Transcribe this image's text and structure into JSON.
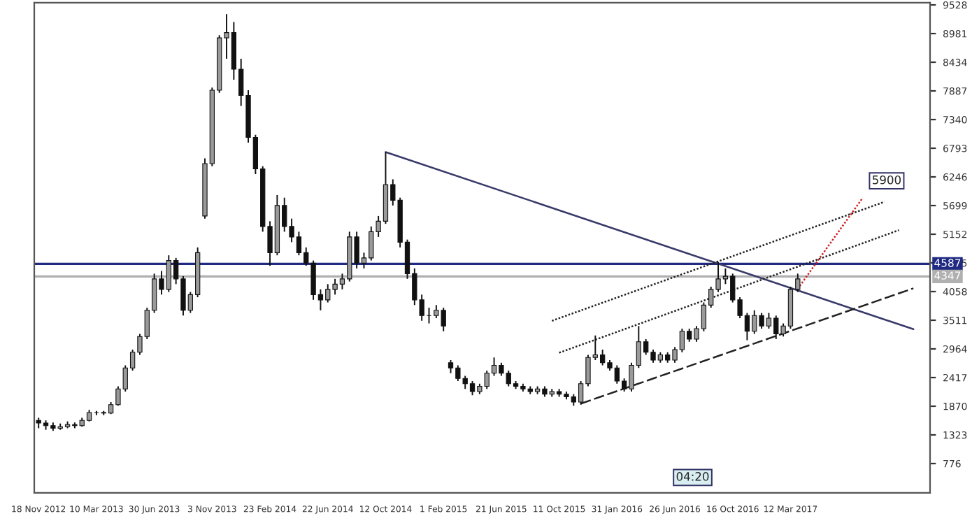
{
  "chart_data": {
    "type": "candlestick",
    "categories": [
      "18 Nov 2012",
      null,
      null,
      null,
      null,
      null,
      null,
      null,
      "10 Mar 2013",
      null,
      null,
      null,
      null,
      null,
      null,
      null,
      "30 Jun 2013",
      null,
      null,
      null,
      null,
      null,
      null,
      null,
      "3 Nov 2013",
      null,
      null,
      null,
      null,
      null,
      null,
      null,
      "23 Feb 2014",
      null,
      null,
      null,
      null,
      null,
      null,
      null,
      "22 Jun 2014",
      null,
      null,
      null,
      null,
      null,
      null,
      null,
      "12 Oct 2014",
      null,
      null,
      null,
      null,
      null,
      null,
      null,
      "1 Feb 2015",
      null,
      null,
      null,
      null,
      null,
      null,
      null,
      "21 Jun 2015",
      null,
      null,
      null,
      null,
      null,
      null,
      null,
      "11 Oct 2015",
      null,
      null,
      null,
      null,
      null,
      null,
      null,
      "31 Jan 2016",
      null,
      null,
      null,
      null,
      null,
      null,
      null,
      "26 Jun 2016",
      null,
      null,
      null,
      null,
      null,
      null,
      null,
      "16 Oct 2016",
      null,
      null,
      null,
      null,
      null,
      null,
      null,
      "12 Mar 2017",
      null,
      null,
      null,
      null,
      null,
      null,
      null,
      null,
      null,
      null,
      null,
      null,
      null,
      null,
      null,
      null,
      null,
      null,
      null
    ],
    "ohlc": [
      [
        1600,
        1650,
        1450,
        1550
      ],
      [
        1550,
        1600,
        1420,
        1500
      ],
      [
        1500,
        1560,
        1400,
        1450
      ],
      [
        1450,
        1540,
        1420,
        1480
      ],
      [
        1480,
        1580,
        1450,
        1520
      ],
      [
        1520,
        1560,
        1450,
        1500
      ],
      [
        1500,
        1650,
        1480,
        1600
      ],
      [
        1600,
        1800,
        1580,
        1750
      ],
      [
        1750,
        1780,
        1700,
        1750
      ],
      [
        1750,
        1780,
        1700,
        1740
      ],
      [
        1740,
        1950,
        1720,
        1900
      ],
      [
        1900,
        2250,
        1880,
        2200
      ],
      [
        2200,
        2650,
        2150,
        2600
      ],
      [
        2600,
        2950,
        2550,
        2900
      ],
      [
        2900,
        3250,
        2850,
        3200
      ],
      [
        3200,
        3750,
        3150,
        3700
      ],
      [
        3700,
        4400,
        3650,
        4300
      ],
      [
        4300,
        4450,
        4000,
        4100
      ],
      [
        4100,
        4750,
        4050,
        4650
      ],
      [
        4650,
        4700,
        4200,
        4300
      ],
      [
        4300,
        4350,
        3600,
        3700
      ],
      [
        3700,
        4050,
        3650,
        4000
      ],
      [
        4000,
        4900,
        3950,
        4800
      ],
      [
        5500,
        6600,
        5450,
        6500
      ],
      [
        6500,
        7950,
        6450,
        7900
      ],
      [
        7900,
        8950,
        7850,
        8900
      ],
      [
        8900,
        9350,
        8500,
        9000
      ],
      [
        9000,
        9200,
        8100,
        8300
      ],
      [
        8300,
        8500,
        7600,
        7800
      ],
      [
        7800,
        7900,
        6900,
        7000
      ],
      [
        7000,
        7050,
        6300,
        6400
      ],
      [
        6400,
        6450,
        5200,
        5300
      ],
      [
        5300,
        5400,
        4550,
        4800
      ],
      [
        4800,
        5900,
        4750,
        5700
      ],
      [
        5700,
        5850,
        5200,
        5300
      ],
      [
        5300,
        5450,
        5000,
        5100
      ],
      [
        5100,
        5200,
        4750,
        4800
      ],
      [
        4800,
        4900,
        4550,
        4600
      ],
      [
        4600,
        4650,
        3900,
        4000
      ],
      [
        4000,
        4100,
        3700,
        3900
      ],
      [
        3900,
        4200,
        3850,
        4100
      ],
      [
        4100,
        4300,
        4000,
        4200
      ],
      [
        4200,
        4400,
        4100,
        4300
      ],
      [
        4300,
        5200,
        4250,
        5100
      ],
      [
        5100,
        5200,
        4500,
        4600
      ],
      [
        4600,
        4800,
        4500,
        4700
      ],
      [
        4700,
        5300,
        4650,
        5200
      ],
      [
        5200,
        5500,
        5100,
        5400
      ],
      [
        5400,
        6720,
        5350,
        6100
      ],
      [
        6100,
        6200,
        5700,
        5800
      ],
      [
        5800,
        5850,
        4900,
        5000
      ],
      [
        5000,
        5050,
        4300,
        4400
      ],
      [
        4400,
        4500,
        3800,
        3900
      ],
      [
        3900,
        4000,
        3500,
        3600
      ],
      [
        3600,
        3750,
        3450,
        3600
      ],
      [
        3600,
        3800,
        3550,
        3700
      ],
      [
        3700,
        3750,
        3300,
        3400
      ],
      [
        2700,
        2750,
        2500,
        2600
      ],
      [
        2600,
        2650,
        2350,
        2400
      ],
      [
        2400,
        2450,
        2200,
        2300
      ],
      [
        2300,
        2350,
        2080,
        2150
      ],
      [
        2150,
        2300,
        2100,
        2250
      ],
      [
        2250,
        2550,
        2200,
        2500
      ],
      [
        2500,
        2800,
        2450,
        2650
      ],
      [
        2650,
        2700,
        2450,
        2500
      ],
      [
        2500,
        2550,
        2250,
        2300
      ],
      [
        2300,
        2350,
        2200,
        2250
      ],
      [
        2250,
        2300,
        2150,
        2200
      ],
      [
        2200,
        2250,
        2100,
        2150
      ],
      [
        2150,
        2250,
        2100,
        2200
      ],
      [
        2200,
        2250,
        2050,
        2100
      ],
      [
        2100,
        2200,
        2050,
        2150
      ],
      [
        2150,
        2200,
        2050,
        2100
      ],
      [
        2100,
        2150,
        2000,
        2050
      ],
      [
        2050,
        2100,
        1880,
        1950
      ],
      [
        1950,
        2350,
        1900,
        2300
      ],
      [
        2300,
        2850,
        2250,
        2800
      ],
      [
        2800,
        3220,
        2750,
        2850
      ],
      [
        2850,
        2950,
        2650,
        2700
      ],
      [
        2700,
        2750,
        2550,
        2600
      ],
      [
        2600,
        2650,
        2300,
        2350
      ],
      [
        2350,
        2400,
        2150,
        2200
      ],
      [
        2200,
        2700,
        2150,
        2650
      ],
      [
        2650,
        3400,
        2600,
        3100
      ],
      [
        3100,
        3150,
        2850,
        2900
      ],
      [
        2900,
        2950,
        2700,
        2750
      ],
      [
        2750,
        2900,
        2700,
        2850
      ],
      [
        2850,
        2900,
        2700,
        2750
      ],
      [
        2750,
        3000,
        2700,
        2950
      ],
      [
        2950,
        3350,
        2900,
        3300
      ],
      [
        3300,
        3350,
        3100,
        3150
      ],
      [
        3150,
        3400,
        3100,
        3350
      ],
      [
        3350,
        3850,
        3300,
        3800
      ],
      [
        3800,
        4150,
        3750,
        4100
      ],
      [
        4100,
        4620,
        4050,
        4300
      ],
      [
        4300,
        4500,
        4200,
        4350
      ],
      [
        4350,
        4400,
        3850,
        3900
      ],
      [
        3900,
        3950,
        3550,
        3600
      ],
      [
        3600,
        3650,
        3130,
        3300
      ],
      [
        3300,
        3700,
        3250,
        3600
      ],
      [
        3600,
        3650,
        3350,
        3400
      ],
      [
        3400,
        3650,
        3350,
        3550
      ],
      [
        3550,
        3600,
        3150,
        3250
      ],
      [
        3250,
        3450,
        3200,
        3400
      ],
      [
        3400,
        4150,
        3350,
        4100
      ],
      [
        4100,
        4400,
        4050,
        4300
      ],
      null,
      null,
      null,
      null,
      null,
      null,
      null,
      null,
      null,
      null,
      null,
      null,
      null,
      null,
      null,
      null,
      null,
      null
    ],
    "series": [
      {
        "type": "line",
        "color": "#3a3a6a",
        "line_style": "solid",
        "values": [
          null,
          null,
          null,
          null,
          null,
          null,
          null,
          null,
          null,
          null,
          null,
          null,
          null,
          null,
          null,
          null,
          null,
          null,
          null,
          null,
          null,
          null,
          null,
          null,
          null,
          null,
          null,
          null,
          null,
          null,
          null,
          null,
          null,
          null,
          null,
          null,
          null,
          null,
          null,
          null,
          null,
          null,
          null,
          null,
          null,
          null,
          null,
          null,
          6720,
          null,
          null,
          null,
          null,
          null,
          null,
          null,
          null,
          null,
          null,
          null,
          null,
          null,
          null,
          null,
          null,
          null,
          null,
          null,
          null,
          null,
          null,
          null,
          null,
          null,
          null,
          null,
          null,
          null,
          null,
          null,
          null,
          null,
          null,
          null,
          null,
          null,
          null,
          null,
          null,
          null,
          null,
          null,
          null,
          null,
          null,
          null,
          null,
          null,
          null,
          null,
          null,
          null,
          null,
          null,
          null,
          null,
          null,
          null,
          null,
          null,
          null,
          null,
          null,
          null,
          null,
          null,
          null,
          null,
          null,
          null,
          null,
          3340,
          null,
          null
        ]
      },
      {
        "type": "line",
        "color": "#222222",
        "line_style": "dashed",
        "values": [
          null,
          null,
          null,
          null,
          null,
          null,
          null,
          null,
          null,
          null,
          null,
          null,
          null,
          null,
          null,
          null,
          null,
          null,
          null,
          null,
          null,
          null,
          null,
          null,
          null,
          null,
          null,
          null,
          null,
          null,
          null,
          null,
          null,
          null,
          null,
          null,
          null,
          null,
          null,
          null,
          null,
          null,
          null,
          null,
          null,
          null,
          null,
          null,
          null,
          null,
          null,
          null,
          null,
          null,
          null,
          null,
          null,
          null,
          null,
          null,
          null,
          null,
          null,
          null,
          null,
          null,
          null,
          null,
          null,
          null,
          null,
          null,
          null,
          null,
          null,
          1920,
          null,
          null,
          null,
          null,
          null,
          null,
          null,
          null,
          null,
          null,
          null,
          null,
          null,
          null,
          null,
          null,
          null,
          null,
          null,
          null,
          null,
          null,
          null,
          null,
          null,
          null,
          null,
          null,
          null,
          null,
          null,
          null,
          null,
          null,
          null,
          null,
          null,
          null,
          null,
          null,
          null,
          null,
          null,
          null,
          null,
          4120,
          null,
          null
        ]
      },
      {
        "type": "line",
        "color": "#222222",
        "line_style": "dotted",
        "values": [
          null,
          null,
          null,
          null,
          null,
          null,
          null,
          null,
          null,
          null,
          null,
          null,
          null,
          null,
          null,
          null,
          null,
          null,
          null,
          null,
          null,
          null,
          null,
          null,
          null,
          null,
          null,
          null,
          null,
          null,
          null,
          null,
          null,
          null,
          null,
          null,
          null,
          null,
          null,
          null,
          null,
          null,
          null,
          null,
          null,
          null,
          null,
          null,
          null,
          null,
          null,
          null,
          null,
          null,
          null,
          null,
          null,
          null,
          null,
          null,
          null,
          null,
          null,
          null,
          null,
          null,
          null,
          null,
          null,
          null,
          null,
          null,
          2890,
          null,
          null,
          null,
          null,
          null,
          null,
          null,
          null,
          null,
          null,
          null,
          null,
          null,
          null,
          null,
          null,
          null,
          null,
          null,
          null,
          null,
          null,
          null,
          null,
          null,
          null,
          null,
          null,
          null,
          null,
          null,
          null,
          null,
          null,
          null,
          null,
          null,
          null,
          null,
          null,
          null,
          null,
          null,
          null,
          null,
          null,
          5230,
          null,
          null,
          null,
          null
        ]
      },
      {
        "type": "line",
        "color": "#222222",
        "line_style": "dotted",
        "values": [
          null,
          null,
          null,
          null,
          null,
          null,
          null,
          null,
          null,
          null,
          null,
          null,
          null,
          null,
          null,
          null,
          null,
          null,
          null,
          null,
          null,
          null,
          null,
          null,
          null,
          null,
          null,
          null,
          null,
          null,
          null,
          null,
          null,
          null,
          null,
          null,
          null,
          null,
          null,
          null,
          null,
          null,
          null,
          null,
          null,
          null,
          null,
          null,
          null,
          null,
          null,
          null,
          null,
          null,
          null,
          null,
          null,
          null,
          null,
          null,
          null,
          null,
          null,
          null,
          null,
          null,
          null,
          null,
          null,
          null,
          null,
          3500,
          null,
          null,
          null,
          null,
          null,
          null,
          null,
          null,
          null,
          null,
          null,
          null,
          null,
          null,
          null,
          null,
          null,
          null,
          null,
          null,
          null,
          null,
          null,
          null,
          null,
          null,
          null,
          null,
          null,
          null,
          null,
          null,
          null,
          null,
          null,
          null,
          null,
          null,
          null,
          null,
          null,
          null,
          null,
          null,
          null,
          5770,
          null,
          null,
          null,
          null,
          null,
          null
        ]
      },
      {
        "type": "line",
        "color": "#cc2222",
        "line_style": "dotted",
        "values": [
          null,
          null,
          null,
          null,
          null,
          null,
          null,
          null,
          null,
          null,
          null,
          null,
          null,
          null,
          null,
          null,
          null,
          null,
          null,
          null,
          null,
          null,
          null,
          null,
          null,
          null,
          null,
          null,
          null,
          null,
          null,
          null,
          null,
          null,
          null,
          null,
          null,
          null,
          null,
          null,
          null,
          null,
          null,
          null,
          null,
          null,
          null,
          null,
          null,
          null,
          null,
          null,
          null,
          null,
          null,
          null,
          null,
          null,
          null,
          null,
          null,
          null,
          null,
          null,
          null,
          null,
          null,
          null,
          null,
          null,
          null,
          null,
          null,
          null,
          null,
          null,
          null,
          null,
          null,
          null,
          null,
          null,
          null,
          null,
          null,
          null,
          null,
          null,
          null,
          null,
          null,
          null,
          null,
          null,
          null,
          null,
          null,
          null,
          null,
          null,
          null,
          null,
          null,
          null,
          null,
          4110,
          null,
          null,
          null,
          null,
          null,
          null,
          null,
          null,
          5850,
          null,
          null,
          null,
          null,
          null,
          null,
          null,
          null,
          null
        ]
      }
    ],
    "ref_lines": [
      {
        "axis": "y",
        "value": 4587,
        "label": "4587",
        "color": "#1f2a80"
      },
      {
        "axis": "y",
        "value": 4347,
        "label": "4347",
        "color": "#b0b0b0"
      }
    ],
    "annotations": [
      "5900",
      "04:20"
    ],
    "ylim": [
      216,
      9571
    ],
    "yticks": [
      776,
      1323,
      1870,
      2417,
      2964,
      3511,
      4058,
      4605,
      5152,
      5699,
      6246,
      6793,
      7340,
      7887,
      8434,
      8981,
      9528
    ],
    "grid": false
  }
}
